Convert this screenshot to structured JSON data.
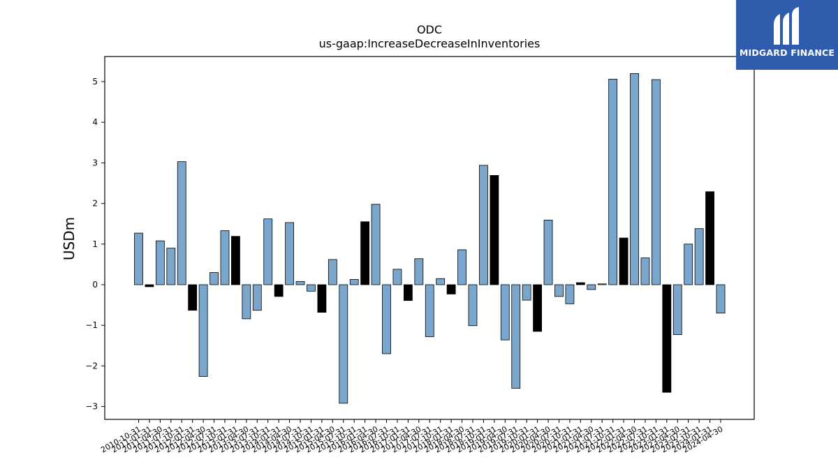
{
  "brand": {
    "name": "MIDGARD FINANCE",
    "color": "#2f5cad",
    "icon": "midgard-logo-icon"
  },
  "chart_data": {
    "type": "bar",
    "title": "ODC",
    "subtitle": "us-gaap:IncreaseDecreaseInInventories",
    "xlabel": "",
    "ylabel": "USDm",
    "ylim": [
      -3.3,
      5.6
    ],
    "yticks": [
      -3,
      -2,
      -1,
      0,
      1,
      2,
      3,
      4,
      5
    ],
    "ytick_labels": [
      "−3",
      "−2",
      "−1",
      "0",
      "1",
      "2",
      "3",
      "4",
      "5"
    ],
    "grid": false,
    "colors": {
      "quarter": "#7aa6cc",
      "fiscal_year_end": "#000000",
      "edge": "#000000"
    },
    "categories": [
      "2010-10-31",
      "2011-01-31",
      "2011-04-30",
      "2011-07-31",
      "2011-10-31",
      "2012-01-31",
      "2012-04-30",
      "2012-07-31",
      "2012-10-31",
      "2013-01-31",
      "2013-04-30",
      "2013-07-31",
      "2013-10-31",
      "2014-01-31",
      "2014-04-30",
      "2014-07-31",
      "2014-10-31",
      "2015-01-31",
      "2015-04-30",
      "2015-07-31",
      "2015-10-31",
      "2016-01-31",
      "2016-04-30",
      "2016-07-31",
      "2016-10-31",
      "2017-01-31",
      "2017-04-30",
      "2017-07-31",
      "2017-10-31",
      "2018-01-31",
      "2018-04-30",
      "2018-07-31",
      "2018-10-31",
      "2019-01-31",
      "2019-04-30",
      "2019-07-31",
      "2019-10-31",
      "2020-01-31",
      "2020-04-30",
      "2020-07-31",
      "2020-10-31",
      "2021-01-31",
      "2021-04-30",
      "2021-07-31",
      "2021-10-31",
      "2022-01-31",
      "2022-04-30",
      "2022-07-31",
      "2022-10-31",
      "2023-01-31",
      "2023-04-30",
      "2023-07-31",
      "2023-10-31",
      "2024-01-31",
      "2024-04-30"
    ],
    "values": [
      1.27,
      -0.05,
      1.08,
      0.9,
      3.03,
      -0.63,
      -2.26,
      0.3,
      1.33,
      1.19,
      -0.84,
      -0.63,
      1.62,
      -0.29,
      1.53,
      0.08,
      -0.16,
      -0.68,
      0.62,
      -2.92,
      0.13,
      1.55,
      1.98,
      -1.7,
      0.38,
      -0.39,
      0.64,
      -1.28,
      0.15,
      -0.23,
      0.86,
      -1.01,
      2.94,
      2.69,
      -1.36,
      -2.55,
      -0.38,
      -1.15,
      1.59,
      -0.29,
      -0.47,
      0.05,
      -0.12,
      0.02,
      5.06,
      1.15,
      5.2,
      0.66,
      5.05,
      -2.65,
      -1.23,
      1.0,
      1.38,
      2.29,
      -0.7
    ],
    "highlight": [
      false,
      true,
      false,
      false,
      false,
      true,
      false,
      false,
      false,
      true,
      false,
      false,
      false,
      true,
      false,
      false,
      false,
      true,
      false,
      false,
      false,
      true,
      false,
      false,
      false,
      true,
      false,
      false,
      false,
      true,
      false,
      false,
      false,
      true,
      false,
      false,
      false,
      true,
      false,
      false,
      false,
      true,
      false,
      false,
      false,
      true,
      false,
      false,
      false,
      true,
      false,
      false,
      false,
      true,
      false
    ]
  }
}
